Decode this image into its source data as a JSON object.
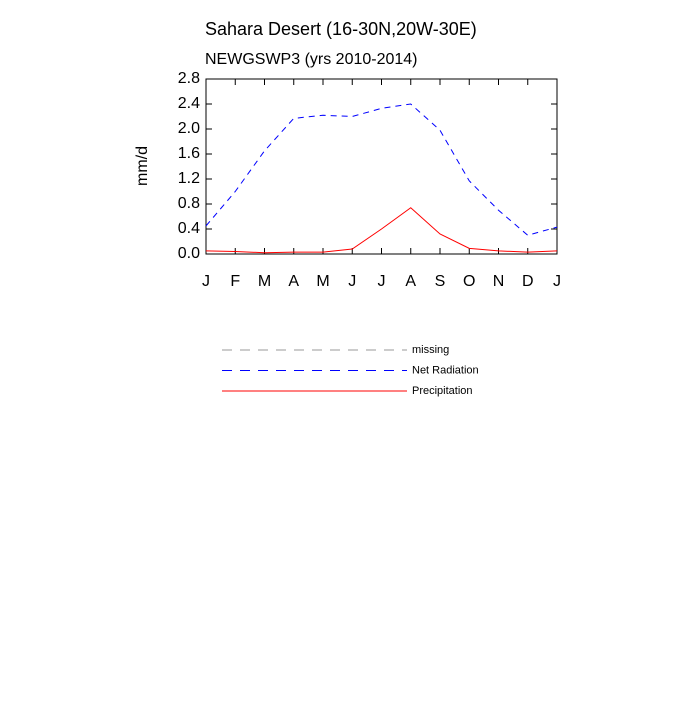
{
  "chart_data": {
    "type": "line",
    "title": "Sahara Desert (16-30N,20W-30E)",
    "subtitle": "NEWGSWP3 (yrs 2010-2014)",
    "y_label": "mm/d",
    "categories": [
      "J",
      "F",
      "M",
      "A",
      "M",
      "J",
      "J",
      "A",
      "S",
      "O",
      "N",
      "D",
      "J"
    ],
    "series": [
      {
        "name": "missing",
        "color": "#999999",
        "dash": true,
        "values": [
          null,
          null,
          null,
          null,
          null,
          null,
          null,
          null,
          null,
          null,
          null,
          null,
          null
        ]
      },
      {
        "name": "Net Radiation",
        "color": "#0000ff",
        "dash": true,
        "values": [
          0.45,
          1.0,
          1.65,
          2.17,
          2.22,
          2.2,
          2.33,
          2.4,
          1.98,
          1.17,
          0.7,
          0.3,
          0.43
        ]
      },
      {
        "name": "Precipitation",
        "color": "#ff0000",
        "dash": false,
        "values": [
          0.05,
          0.04,
          0.02,
          0.03,
          0.03,
          0.08,
          0.4,
          0.74,
          0.32,
          0.09,
          0.05,
          0.03,
          0.05
        ]
      }
    ],
    "ylim": [
      0,
      2.8
    ],
    "yticks": [
      {
        "value": 0,
        "label": "0.0"
      },
      0.4,
      0.8,
      1.2,
      1.6,
      {
        "value": 2,
        "label": "2.0"
      },
      2.4,
      2.8
    ]
  }
}
